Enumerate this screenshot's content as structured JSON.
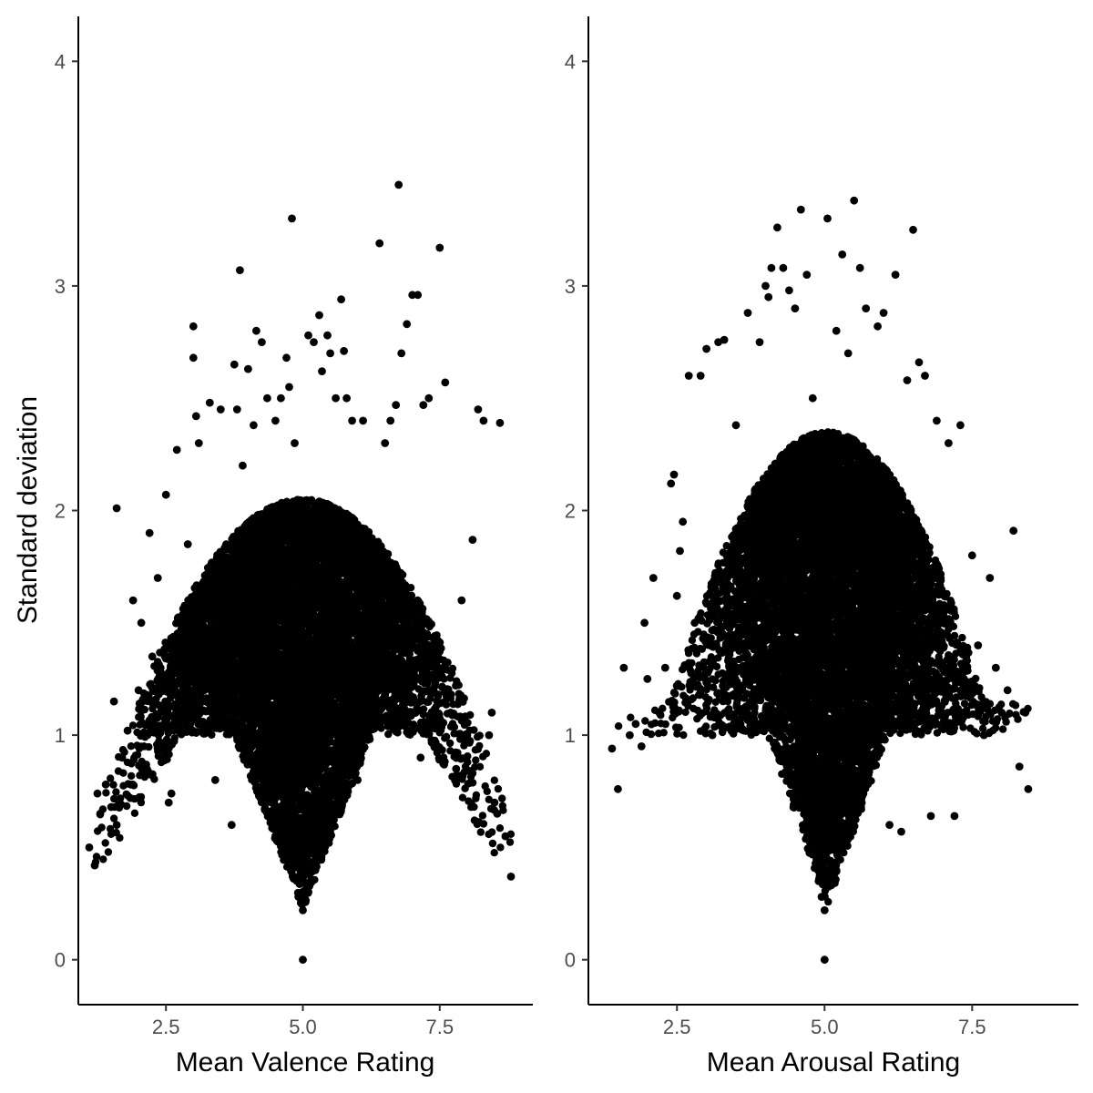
{
  "chart_data": [
    {
      "type": "scatter",
      "panel": "left",
      "xlabel": "Mean Valence Rating",
      "ylabel": "Standard deviation",
      "xlim": [
        0.9,
        9.2
      ],
      "ylim": [
        -0.2,
        4.2
      ],
      "xticks": [
        2.5,
        5.0,
        7.5
      ],
      "xtick_labels": [
        "2.5",
        "5.0",
        "7.5"
      ],
      "yticks": [
        0,
        1,
        2,
        3,
        4
      ],
      "ytick_labels": [
        "0",
        "1",
        "2",
        "3",
        "4"
      ],
      "grid": false,
      "point_color": "#000000",
      "points": [
        [
          1.1,
          0.5
        ],
        [
          1.2,
          0.42
        ],
        [
          1.25,
          0.74
        ],
        [
          1.3,
          0.65
        ],
        [
          1.4,
          0.78
        ],
        [
          1.5,
          0.68
        ],
        [
          1.55,
          1.15
        ],
        [
          1.6,
          0.6
        ],
        [
          1.6,
          2.01
        ],
        [
          1.7,
          0.9
        ],
        [
          1.8,
          1.02
        ],
        [
          1.85,
          0.72
        ],
        [
          1.9,
          1.6
        ],
        [
          2.0,
          1.2
        ],
        [
          2.05,
          1.5
        ],
        [
          2.1,
          0.95
        ],
        [
          2.15,
          0.85
        ],
        [
          2.2,
          1.9
        ],
        [
          2.25,
          1.35
        ],
        [
          2.35,
          1.7
        ],
        [
          2.4,
          1.1
        ],
        [
          2.5,
          2.07
        ],
        [
          2.55,
          0.7
        ],
        [
          2.6,
          0.74
        ],
        [
          2.7,
          2.27
        ],
        [
          2.8,
          1.4
        ],
        [
          2.9,
          1.85
        ],
        [
          3.0,
          2.82
        ],
        [
          3.0,
          2.68
        ],
        [
          3.05,
          2.42
        ],
        [
          3.1,
          2.3
        ],
        [
          3.2,
          1.2
        ],
        [
          3.3,
          2.48
        ],
        [
          3.4,
          0.8
        ],
        [
          3.5,
          2.45
        ],
        [
          3.6,
          1.6
        ],
        [
          3.7,
          0.6
        ],
        [
          3.75,
          2.65
        ],
        [
          3.8,
          2.45
        ],
        [
          3.85,
          3.07
        ],
        [
          3.9,
          2.2
        ],
        [
          3.95,
          1.0
        ],
        [
          4.0,
          2.63
        ],
        [
          4.1,
          2.38
        ],
        [
          4.15,
          2.8
        ],
        [
          4.25,
          2.75
        ],
        [
          4.35,
          2.5
        ],
        [
          4.4,
          0.9
        ],
        [
          4.5,
          2.4
        ],
        [
          4.6,
          2.5
        ],
        [
          4.7,
          2.68
        ],
        [
          4.75,
          2.55
        ],
        [
          4.8,
          3.3
        ],
        [
          4.85,
          2.3
        ],
        [
          4.9,
          0.5
        ],
        [
          4.95,
          0.4
        ],
        [
          4.98,
          0.3
        ],
        [
          5.0,
          0.0
        ],
        [
          5.0,
          0.22
        ],
        [
          5.02,
          0.3
        ],
        [
          5.05,
          0.45
        ],
        [
          5.1,
          2.78
        ],
        [
          5.1,
          0.6
        ],
        [
          5.2,
          2.75
        ],
        [
          5.3,
          2.87
        ],
        [
          5.35,
          2.62
        ],
        [
          5.45,
          2.78
        ],
        [
          5.5,
          2.7
        ],
        [
          5.6,
          2.5
        ],
        [
          5.7,
          2.94
        ],
        [
          5.75,
          2.71
        ],
        [
          5.8,
          2.5
        ],
        [
          5.9,
          2.4
        ],
        [
          6.0,
          0.8
        ],
        [
          6.1,
          2.4
        ],
        [
          6.2,
          1.9
        ],
        [
          6.4,
          3.19
        ],
        [
          6.5,
          2.3
        ],
        [
          6.6,
          2.4
        ],
        [
          6.7,
          2.47
        ],
        [
          6.75,
          3.45
        ],
        [
          6.8,
          2.7
        ],
        [
          6.9,
          2.83
        ],
        [
          7.0,
          2.96
        ],
        [
          7.1,
          2.96
        ],
        [
          7.15,
          0.9
        ],
        [
          7.2,
          2.47
        ],
        [
          7.3,
          2.5
        ],
        [
          7.4,
          0.95
        ],
        [
          7.5,
          3.17
        ],
        [
          7.6,
          2.57
        ],
        [
          7.7,
          1.1
        ],
        [
          7.8,
          0.85
        ],
        [
          7.9,
          1.6
        ],
        [
          8.0,
          1.0
        ],
        [
          8.1,
          1.87
        ],
        [
          8.2,
          2.45
        ],
        [
          8.3,
          2.4
        ],
        [
          8.4,
          1.0
        ],
        [
          8.5,
          0.7
        ],
        [
          8.6,
          2.39
        ],
        [
          8.7,
          0.55
        ],
        [
          8.8,
          0.37
        ],
        [
          8.55,
          0.65
        ],
        [
          8.45,
          1.1
        ]
      ]
    },
    {
      "type": "scatter",
      "panel": "right",
      "xlabel": "Mean Arousal Rating",
      "ylabel": "",
      "xlim": [
        1.0,
        9.3
      ],
      "ylim": [
        -0.2,
        4.2
      ],
      "xticks": [
        2.5,
        5.0,
        7.5
      ],
      "xtick_labels": [
        "2.5",
        "5.0",
        "7.5"
      ],
      "yticks": [
        0,
        1,
        2,
        3,
        4
      ],
      "ytick_labels": [
        "0",
        "1",
        "2",
        "3",
        "4"
      ],
      "grid": false,
      "point_color": "#000000",
      "points": [
        [
          1.4,
          0.94
        ],
        [
          1.5,
          0.76
        ],
        [
          1.6,
          1.3
        ],
        [
          1.7,
          1.0
        ],
        [
          1.8,
          1.05
        ],
        [
          1.9,
          0.95
        ],
        [
          1.95,
          1.5
        ],
        [
          2.0,
          1.25
        ],
        [
          2.1,
          1.7
        ],
        [
          2.2,
          1.1
        ],
        [
          2.3,
          1.3
        ],
        [
          2.4,
          2.12
        ],
        [
          2.45,
          2.16
        ],
        [
          2.5,
          1.62
        ],
        [
          2.55,
          1.82
        ],
        [
          2.6,
          1.95
        ],
        [
          2.7,
          2.6
        ],
        [
          2.8,
          1.5
        ],
        [
          2.9,
          2.6
        ],
        [
          3.0,
          2.72
        ],
        [
          3.1,
          1.0
        ],
        [
          3.2,
          2.75
        ],
        [
          3.3,
          2.76
        ],
        [
          3.4,
          1.4
        ],
        [
          3.5,
          2.38
        ],
        [
          3.6,
          1.2
        ],
        [
          3.7,
          2.88
        ],
        [
          3.8,
          1.05
        ],
        [
          3.9,
          2.75
        ],
        [
          4.0,
          3.0
        ],
        [
          4.05,
          2.95
        ],
        [
          4.1,
          3.08
        ],
        [
          4.2,
          3.26
        ],
        [
          4.3,
          3.08
        ],
        [
          4.4,
          2.98
        ],
        [
          4.5,
          2.9
        ],
        [
          4.6,
          3.34
        ],
        [
          4.7,
          3.05
        ],
        [
          4.8,
          2.5
        ],
        [
          4.85,
          0.5
        ],
        [
          4.9,
          0.35
        ],
        [
          4.95,
          0.28
        ],
        [
          5.0,
          0.0
        ],
        [
          5.0,
          0.22
        ],
        [
          5.05,
          3.3
        ],
        [
          5.1,
          0.4
        ],
        [
          5.2,
          2.8
        ],
        [
          5.3,
          3.14
        ],
        [
          5.4,
          2.7
        ],
        [
          5.5,
          3.38
        ],
        [
          5.6,
          3.08
        ],
        [
          5.7,
          2.9
        ],
        [
          5.8,
          1.0
        ],
        [
          5.9,
          2.82
        ],
        [
          6.0,
          2.88
        ],
        [
          6.1,
          0.6
        ],
        [
          6.2,
          3.05
        ],
        [
          6.3,
          0.57
        ],
        [
          6.4,
          2.58
        ],
        [
          6.5,
          3.25
        ],
        [
          6.6,
          2.66
        ],
        [
          6.7,
          2.6
        ],
        [
          6.8,
          0.64
        ],
        [
          6.9,
          2.4
        ],
        [
          7.0,
          1.5
        ],
        [
          7.1,
          2.3
        ],
        [
          7.2,
          0.64
        ],
        [
          7.3,
          2.38
        ],
        [
          7.4,
          1.35
        ],
        [
          7.5,
          1.8
        ],
        [
          7.6,
          1.4
        ],
        [
          7.7,
          1.0
        ],
        [
          7.8,
          1.7
        ],
        [
          7.9,
          1.3
        ],
        [
          8.0,
          1.1
        ],
        [
          8.1,
          1.2
        ],
        [
          8.2,
          1.91
        ],
        [
          8.3,
          0.86
        ],
        [
          8.4,
          1.1
        ],
        [
          8.45,
          0.76
        ]
      ]
    }
  ]
}
